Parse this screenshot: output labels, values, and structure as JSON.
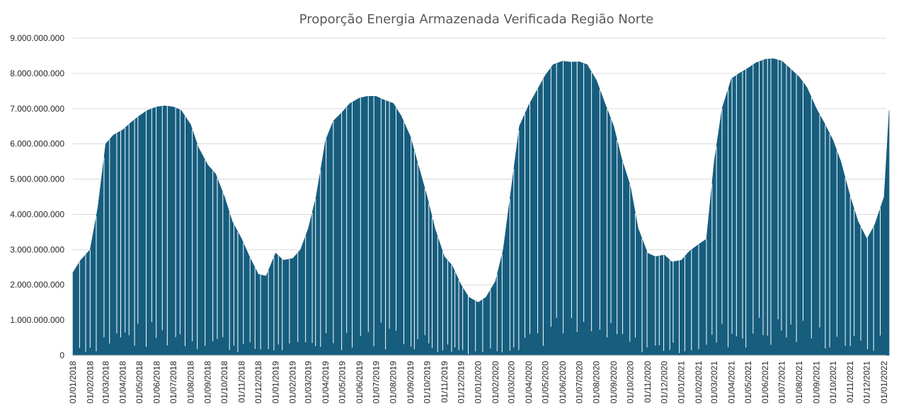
{
  "chart_data": {
    "type": "bar",
    "title": "Proporção Energia Armazenada Verificada Região Norte",
    "xlabel": "",
    "ylabel": "",
    "ylim": [
      0,
      9000000000
    ],
    "grid": true,
    "legend": "none",
    "bar_color": "#165d7e",
    "y_ticks": [
      {
        "value": 0,
        "label": "0"
      },
      {
        "value": 1000000000,
        "label": "1.000.000.000"
      },
      {
        "value": 2000000000,
        "label": "2.000.000.000"
      },
      {
        "value": 3000000000,
        "label": "3.000.000.000"
      },
      {
        "value": 4000000000,
        "label": "4.000.000.000"
      },
      {
        "value": 5000000000,
        "label": "5.000.000.000"
      },
      {
        "value": 6000000000,
        "label": "6.000.000.000"
      },
      {
        "value": 7000000000,
        "label": "7.000.000.000"
      },
      {
        "value": 8000000000,
        "label": "8.000.000.000"
      },
      {
        "value": 9000000000,
        "label": "9.000.000.000"
      }
    ],
    "x_tick_labels": [
      "01/01/2018",
      "01/02/2018",
      "01/03/2018",
      "01/04/2018",
      "01/05/2018",
      "01/06/2018",
      "01/07/2018",
      "01/08/2018",
      "01/09/2018",
      "01/10/2018",
      "01/11/2018",
      "01/12/2018",
      "01/01/2019",
      "01/02/2019",
      "01/03/2019",
      "01/04/2019",
      "01/05/2019",
      "01/06/2019",
      "01/07/2019",
      "01/08/2019",
      "01/09/2019",
      "01/10/2019",
      "01/11/2019",
      "01/12/2019",
      "01/01/2020",
      "01/02/2020",
      "01/03/2020",
      "01/04/2020",
      "01/05/2020",
      "01/06/2020",
      "01/07/2020",
      "01/08/2020",
      "01/09/2020",
      "01/10/2020",
      "01/11/2020",
      "01/12/2020",
      "01/01/2021",
      "01/02/2021",
      "01/03/2021",
      "01/04/2021",
      "01/05/2021",
      "01/06/2021",
      "01/07/2021",
      "01/08/2021",
      "01/09/2021",
      "01/10/2021",
      "01/11/2021",
      "01/12/2021",
      "01/01/2022"
    ],
    "series": [
      {
        "x": [
          "2018-01-01",
          "2018-01-15",
          "2018-02-01",
          "2018-02-15",
          "2018-03-01",
          "2018-03-15",
          "2018-04-01",
          "2018-04-15",
          "2018-05-01",
          "2018-05-15",
          "2018-06-01",
          "2018-06-15",
          "2018-07-01",
          "2018-07-15",
          "2018-08-01",
          "2018-08-15",
          "2018-09-01",
          "2018-09-15",
          "2018-10-01",
          "2018-10-15",
          "2018-11-01",
          "2018-11-15",
          "2018-12-01",
          "2018-12-15",
          "2019-01-01",
          "2019-01-15",
          "2019-02-01",
          "2019-02-15",
          "2019-03-01",
          "2019-03-15",
          "2019-04-01",
          "2019-04-15",
          "2019-05-01",
          "2019-05-15",
          "2019-06-01",
          "2019-06-15",
          "2019-07-01",
          "2019-07-15",
          "2019-08-01",
          "2019-08-15",
          "2019-09-01",
          "2019-09-15",
          "2019-10-01",
          "2019-10-15",
          "2019-11-01",
          "2019-11-15",
          "2019-12-01",
          "2019-12-15",
          "2020-01-01",
          "2020-01-15",
          "2020-02-01",
          "2020-02-15",
          "2020-03-01",
          "2020-03-15",
          "2020-04-01",
          "2020-04-15",
          "2020-05-01",
          "2020-05-15",
          "2020-06-01",
          "2020-06-15",
          "2020-07-01",
          "2020-07-15",
          "2020-08-01",
          "2020-08-15",
          "2020-09-01",
          "2020-09-15",
          "2020-10-01",
          "2020-10-15",
          "2020-11-01",
          "2020-11-15",
          "2020-12-01",
          "2020-12-15",
          "2021-01-01",
          "2021-01-15",
          "2021-02-01",
          "2021-02-15",
          "2021-03-01",
          "2021-03-15",
          "2021-04-01",
          "2021-04-15",
          "2021-05-01",
          "2021-05-15",
          "2021-06-01",
          "2021-06-15",
          "2021-07-01",
          "2021-07-15",
          "2021-08-01",
          "2021-08-15",
          "2021-09-01",
          "2021-09-15",
          "2021-10-01",
          "2021-10-15",
          "2021-11-01",
          "2021-11-15",
          "2021-12-01",
          "2021-12-15",
          "2022-01-01",
          "2022-01-10"
        ],
        "values": [
          2350000000,
          2700000000,
          3000000000,
          4200000000,
          6000000000,
          6250000000,
          6400000000,
          6600000000,
          6800000000,
          6950000000,
          7050000000,
          7080000000,
          7050000000,
          6950000000,
          6550000000,
          5900000000,
          5400000000,
          5150000000,
          4500000000,
          3800000000,
          3300000000,
          2800000000,
          2300000000,
          2250000000,
          2900000000,
          2700000000,
          2750000000,
          3000000000,
          3600000000,
          4500000000,
          6100000000,
          6650000000,
          6900000000,
          7150000000,
          7300000000,
          7350000000,
          7350000000,
          7250000000,
          7150000000,
          6800000000,
          6200000000,
          5400000000,
          4500000000,
          3600000000,
          2800000000,
          2550000000,
          2000000000,
          1650000000,
          1500000000,
          1650000000,
          2100000000,
          3000000000,
          4800000000,
          6500000000,
          7100000000,
          7500000000,
          7950000000,
          8250000000,
          8350000000,
          8320000000,
          8330000000,
          8250000000,
          7800000000,
          7200000000,
          6500000000,
          5600000000,
          4800000000,
          3600000000,
          2900000000,
          2800000000,
          2850000000,
          2650000000,
          2700000000,
          2950000000,
          3150000000,
          3300000000,
          5500000000,
          7000000000,
          7850000000,
          8000000000,
          8150000000,
          8300000000,
          8400000000,
          8420000000,
          8350000000,
          8150000000,
          7900000000,
          7600000000,
          7000000000,
          6600000000,
          6100000000,
          5500000000,
          4500000000,
          3800000000,
          3300000000,
          3700000000,
          4500000000,
          6950000000
        ]
      }
    ]
  }
}
